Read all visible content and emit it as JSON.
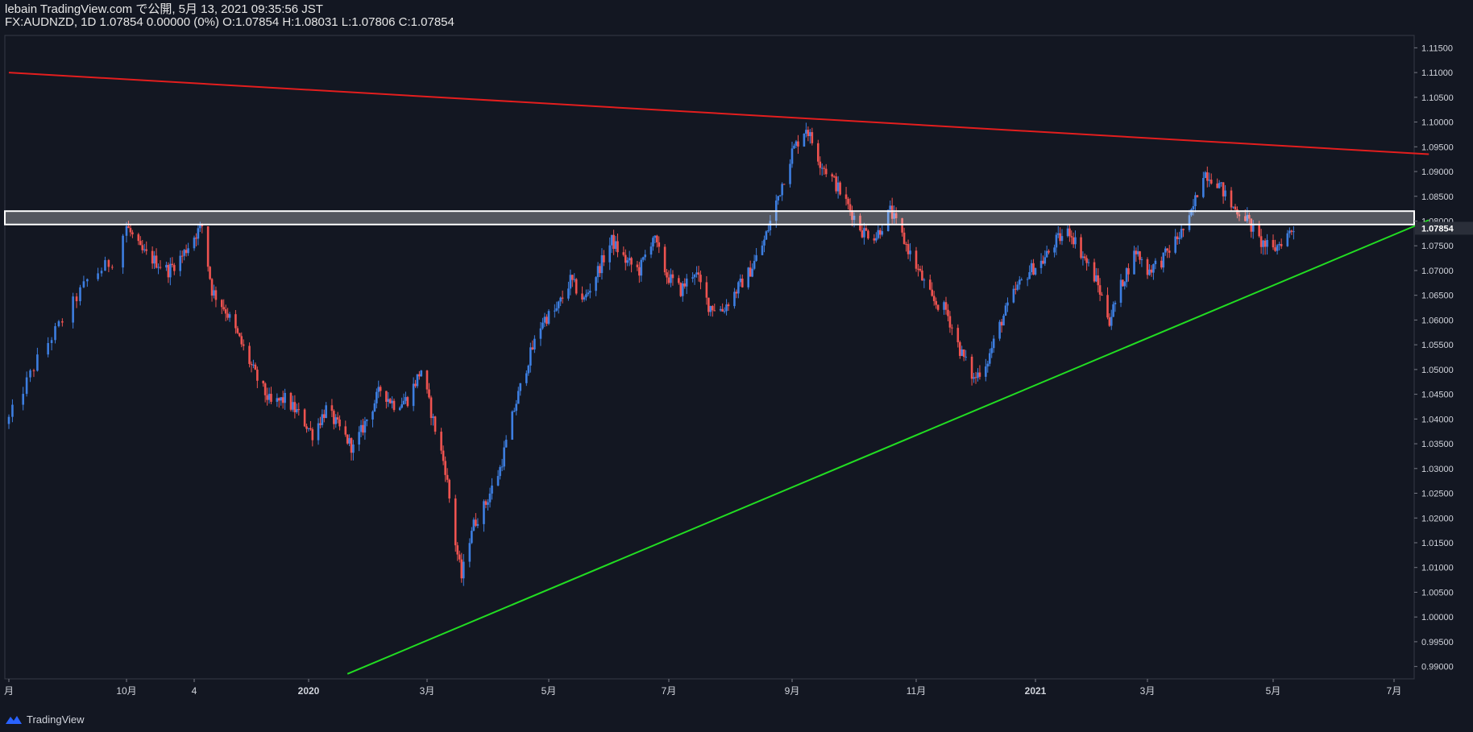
{
  "header": {
    "published": "lebain TradingView.com で公開, 5月 13, 2021 09:35:56 JST",
    "ohlc": "FX:AUDNZD, 1D 1.07854 0.00000 (0%) O:1.07854 H:1.08031 L:1.07806 C:1.07854"
  },
  "brand": {
    "name": "TradingView",
    "icon": "tradingview-logo-icon"
  },
  "colors": {
    "up": "#2962ff",
    "up_candle": "#3d7ee0",
    "down": "#ef5350",
    "background": "#131722",
    "resistance": "#e31e1e",
    "support": "#22dd22",
    "zone": "#ffffff",
    "price_tag": "#2a2e39"
  },
  "chart_data": {
    "type": "candlestick",
    "symbol": "FX:AUDNZD",
    "interval": "1D",
    "last_price": 1.07854,
    "last_price_label": "1.07854",
    "ylim": [
      0.9875,
      1.1175
    ],
    "y_ticks": [
      "1.11500",
      "1.11000",
      "1.10500",
      "1.10000",
      "1.09500",
      "1.09000",
      "1.08500",
      "1.08000",
      "1.07500",
      "1.07000",
      "1.06500",
      "1.06000",
      "1.05500",
      "1.05000",
      "1.04500",
      "1.04000",
      "1.03500",
      "1.03000",
      "1.02500",
      "1.02000",
      "1.01500",
      "1.01000",
      "1.00500",
      "1.00000",
      "0.99500",
      "0.99000"
    ],
    "x_ticks": [
      {
        "label": "月",
        "date": "2019-08-29"
      },
      {
        "label": "10月",
        "date": "2019-10-01"
      },
      {
        "label": "4",
        "date": "2019-11-04"
      },
      {
        "label": "2020",
        "date": "2020-01-01"
      },
      {
        "label": "3月",
        "date": "2020-03-02"
      },
      {
        "label": "5月",
        "date": "2020-05-01"
      },
      {
        "label": "7月",
        "date": "2020-07-01"
      },
      {
        "label": "9月",
        "date": "2020-09-01"
      },
      {
        "label": "11月",
        "date": "2020-11-02"
      },
      {
        "label": "2021",
        "date": "2021-01-01"
      },
      {
        "label": "3月",
        "date": "2021-03-01"
      },
      {
        "label": "5月",
        "date": "2021-05-03"
      },
      {
        "label": "7月",
        "date": "2021-07-01"
      }
    ],
    "close_path": [
      [
        "2019-08-29",
        1.04
      ],
      [
        "2019-09-06",
        1.052
      ],
      [
        "2019-09-13",
        1.06
      ],
      [
        "2019-09-20",
        1.068
      ],
      [
        "2019-09-27",
        1.072
      ],
      [
        "2019-10-01",
        1.079
      ],
      [
        "2019-10-08",
        1.074
      ],
      [
        "2019-10-15",
        1.072
      ],
      [
        "2019-10-22",
        1.07
      ],
      [
        "2019-10-29",
        1.073
      ],
      [
        "2019-11-04",
        1.077
      ],
      [
        "2019-11-08",
        1.079
      ],
      [
        "2019-11-13",
        1.066
      ],
      [
        "2019-11-20",
        1.062
      ],
      [
        "2019-11-27",
        1.056
      ],
      [
        "2019-12-06",
        1.048
      ],
      [
        "2019-12-13",
        1.043
      ],
      [
        "2019-12-20",
        1.044
      ],
      [
        "2019-12-27",
        1.041
      ],
      [
        "2020-01-03",
        1.037
      ],
      [
        "2020-01-10",
        1.042
      ],
      [
        "2020-01-17",
        1.038
      ],
      [
        "2020-01-24",
        1.034
      ],
      [
        "2020-01-31",
        1.04
      ],
      [
        "2020-02-07",
        1.046
      ],
      [
        "2020-02-14",
        1.043
      ],
      [
        "2020-02-21",
        1.044
      ],
      [
        "2020-02-28",
        1.05
      ],
      [
        "2020-03-06",
        1.038
      ],
      [
        "2020-03-11",
        1.03
      ],
      [
        "2020-03-16",
        1.015
      ],
      [
        "2020-03-19",
        1.008
      ],
      [
        "2020-03-24",
        1.018
      ],
      [
        "2020-03-31",
        1.023
      ],
      [
        "2020-04-07",
        1.03
      ],
      [
        "2020-04-14",
        1.042
      ],
      [
        "2020-04-21",
        1.052
      ],
      [
        "2020-04-28",
        1.06
      ],
      [
        "2020-05-05",
        1.062
      ],
      [
        "2020-05-12",
        1.068
      ],
      [
        "2020-05-19",
        1.064
      ],
      [
        "2020-05-26",
        1.07
      ],
      [
        "2020-06-02",
        1.076
      ],
      [
        "2020-06-09",
        1.072
      ],
      [
        "2020-06-16",
        1.07
      ],
      [
        "2020-06-23",
        1.077
      ],
      [
        "2020-06-30",
        1.069
      ],
      [
        "2020-07-07",
        1.066
      ],
      [
        "2020-07-14",
        1.07
      ],
      [
        "2020-07-21",
        1.063
      ],
      [
        "2020-07-28",
        1.062
      ],
      [
        "2020-08-04",
        1.066
      ],
      [
        "2020-08-11",
        1.07
      ],
      [
        "2020-08-18",
        1.076
      ],
      [
        "2020-08-25",
        1.085
      ],
      [
        "2020-09-01",
        1.094
      ],
      [
        "2020-09-08",
        1.099
      ],
      [
        "2020-09-15",
        1.092
      ],
      [
        "2020-09-22",
        1.088
      ],
      [
        "2020-09-29",
        1.083
      ],
      [
        "2020-10-06",
        1.078
      ],
      [
        "2020-10-13",
        1.077
      ],
      [
        "2020-10-20",
        1.082
      ],
      [
        "2020-10-27",
        1.076
      ],
      [
        "2020-11-03",
        1.07
      ],
      [
        "2020-11-10",
        1.064
      ],
      [
        "2020-11-17",
        1.062
      ],
      [
        "2020-11-24",
        1.054
      ],
      [
        "2020-12-01",
        1.048
      ],
      [
        "2020-12-08",
        1.052
      ],
      [
        "2020-12-15",
        1.06
      ],
      [
        "2020-12-22",
        1.066
      ],
      [
        "2020-12-29",
        1.07
      ],
      [
        "2021-01-05",
        1.072
      ],
      [
        "2021-01-12",
        1.076
      ],
      [
        "2021-01-19",
        1.078
      ],
      [
        "2021-01-26",
        1.073
      ],
      [
        "2021-02-02",
        1.068
      ],
      [
        "2021-02-09",
        1.06
      ],
      [
        "2021-02-16",
        1.068
      ],
      [
        "2021-02-23",
        1.074
      ],
      [
        "2021-03-01",
        1.07
      ],
      [
        "2021-03-08",
        1.072
      ],
      [
        "2021-03-15",
        1.076
      ],
      [
        "2021-03-22",
        1.08
      ],
      [
        "2021-03-29",
        1.09
      ],
      [
        "2021-04-05",
        1.088
      ],
      [
        "2021-04-12",
        1.083
      ],
      [
        "2021-04-19",
        1.081
      ],
      [
        "2021-04-26",
        1.076
      ],
      [
        "2021-05-03",
        1.074
      ],
      [
        "2021-05-07",
        1.076
      ],
      [
        "2021-05-13",
        1.07854
      ]
    ],
    "annotations": {
      "resistance_line": {
        "start": [
          "2019-08-29",
          1.11
        ],
        "end": [
          "2021-07-18",
          1.0935
        ]
      },
      "support_line": {
        "start": [
          "2020-01-21",
          0.9885
        ],
        "end": [
          "2021-07-18",
          1.0802
        ]
      },
      "zone": [
        1.0793,
        1.082
      ]
    },
    "grid": false
  }
}
